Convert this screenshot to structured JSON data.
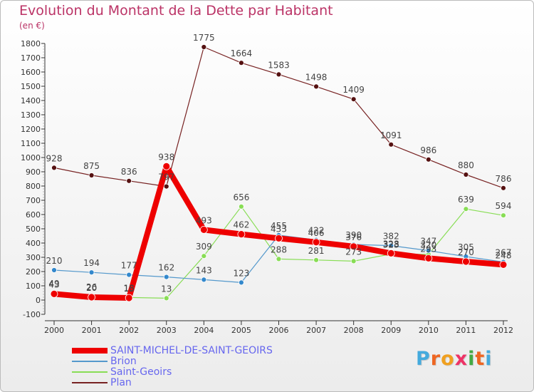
{
  "chart_data": {
    "type": "line",
    "title": "Evolution du Montant de la Dette par Habitant",
    "subtitle": "(en €)",
    "xlabel": "",
    "ylabel": "",
    "categories": [
      "2000",
      "2001",
      "2002",
      "2003",
      "2004",
      "2005",
      "2006",
      "2007",
      "2008",
      "2009",
      "2010",
      "2011",
      "2012"
    ],
    "ylim": [
      -100,
      1800
    ],
    "yticks": [
      -100,
      0,
      100,
      200,
      300,
      400,
      500,
      600,
      700,
      800,
      900,
      1000,
      1100,
      1200,
      1300,
      1400,
      1500,
      1600,
      1700,
      1800
    ],
    "grid": false,
    "legend_position": "bottom-left",
    "series": [
      {
        "name": "SAINT-MICHEL-DE-SAINT-GEOIRS",
        "color": "#ee0000",
        "labels": [
          "43",
          "20",
          "15",
          "938",
          "493",
          "462",
          "433",
          "406",
          "376",
          "328",
          "293",
          "270",
          "248"
        ],
        "values": [
          43,
          20,
          15,
          938,
          493,
          462,
          433,
          406,
          376,
          328,
          293,
          270,
          248
        ]
      },
      {
        "name": "Brion",
        "color": "#5599cc",
        "labels": [
          "210",
          "194",
          "177",
          "162",
          "143",
          "123",
          "455",
          "422",
          "390",
          "382",
          "347",
          "305",
          "267"
        ],
        "values": [
          210,
          194,
          177,
          162,
          143,
          123,
          455,
          422,
          390,
          382,
          347,
          305,
          267
        ]
      },
      {
        "name": "Saint-Geoirs",
        "color": "#88dd55",
        "labels": [
          "49",
          "26",
          "18",
          "13",
          "309",
          "656",
          "288",
          "281",
          "273",
          "323",
          "320",
          "639",
          "594"
        ],
        "values": [
          49,
          26,
          18,
          13,
          309,
          656,
          288,
          281,
          273,
          323,
          320,
          639,
          594
        ]
      },
      {
        "name": "Plan",
        "color": "#772222",
        "labels": [
          "928",
          "875",
          "836",
          "797",
          "1775",
          "1664",
          "1583",
          "1498",
          "1409",
          "1091",
          "986",
          "880",
          "786"
        ],
        "values": [
          928,
          875,
          836,
          797,
          1775,
          1664,
          1583,
          1498,
          1409,
          1091,
          986,
          880,
          786
        ]
      }
    ]
  },
  "logo": {
    "letters": [
      "P",
      "r",
      "o",
      "x",
      "i",
      "t",
      "i"
    ],
    "colors": [
      "#44aadd",
      "#ee6622",
      "#f0a020",
      "#ee3366",
      "#44aa44",
      "#ee6622",
      "#44aadd"
    ]
  }
}
